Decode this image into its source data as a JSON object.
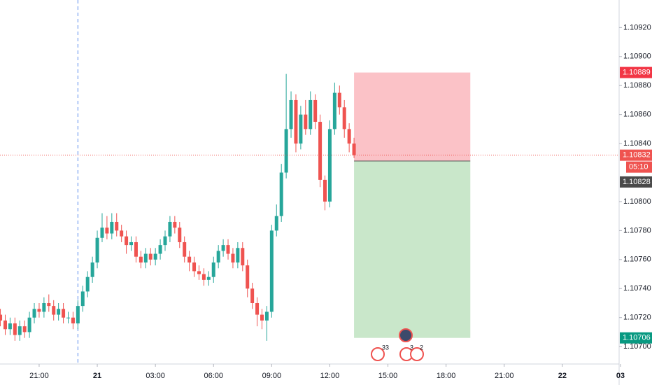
{
  "chart_data": {
    "type": "candlestick",
    "x": [
      19,
      19.25,
      19.5,
      19.75,
      20,
      20.25,
      20.5,
      20.75,
      21,
      21.25,
      21.5,
      21.75,
      22,
      22.25,
      22.5,
      22.75,
      23,
      23.25,
      23.5,
      23.75,
      24,
      24.25,
      24.5,
      24.75,
      25,
      25.25,
      25.5,
      25.75,
      26,
      26.25,
      26.5,
      26.75,
      27,
      27.25,
      27.5,
      27.75,
      28,
      28.25,
      28.5,
      28.75,
      29,
      29.25,
      29.5,
      29.75,
      30,
      30.25,
      30.5,
      30.75,
      31,
      31.25,
      31.5,
      31.75,
      32,
      32.25,
      32.5,
      32.75,
      33,
      33.25,
      33.5,
      33.75,
      34,
      34.25,
      34.5,
      34.75,
      35,
      35.25,
      35.5,
      35.75,
      36,
      36.25,
      36.5,
      36.75,
      37,
      37.25
    ],
    "open": [
      1.10722,
      1.10718,
      1.10712,
      1.10716,
      1.10708,
      1.10714,
      1.1071,
      1.1072,
      1.10726,
      1.10724,
      1.1073,
      1.10728,
      1.10722,
      1.10726,
      1.1072,
      1.1072,
      1.10716,
      1.10728,
      1.10738,
      1.10748,
      1.10758,
      1.10775,
      1.10782,
      1.10778,
      1.10786,
      1.1078,
      1.10776,
      1.1077,
      1.10772,
      1.10762,
      1.10758,
      1.10764,
      1.1076,
      1.10764,
      1.1077,
      1.10776,
      1.10786,
      1.10782,
      1.10772,
      1.10762,
      1.10758,
      1.10752,
      1.1075,
      1.10746,
      1.10748,
      1.10758,
      1.10766,
      1.1077,
      1.10764,
      1.10758,
      1.10768,
      1.10756,
      1.1074,
      1.1073,
      1.10722,
      1.10718,
      1.10724,
      1.1078,
      1.1079,
      1.1082,
      1.1085,
      1.1087,
      1.1084,
      1.1086,
      1.1085,
      1.1087,
      1.10855,
      1.10815,
      1.108,
      1.1085,
      1.10875,
      1.10865,
      1.1085,
      1.1084
    ],
    "high": [
      1.10726,
      1.10722,
      1.1072,
      1.1072,
      1.10718,
      1.10718,
      1.10724,
      1.1073,
      1.1073,
      1.10734,
      1.10736,
      1.10732,
      1.1073,
      1.1073,
      1.10724,
      1.10724,
      1.10732,
      1.10742,
      1.10752,
      1.10762,
      1.1078,
      1.10792,
      1.1079,
      1.10792,
      1.10792,
      1.10784,
      1.1078,
      1.10776,
      1.10776,
      1.10766,
      1.10768,
      1.10768,
      1.10768,
      1.10774,
      1.1078,
      1.1079,
      1.1079,
      1.10786,
      1.10776,
      1.10766,
      1.10762,
      1.10756,
      1.10754,
      1.10752,
      1.10762,
      1.1077,
      1.10774,
      1.10774,
      1.10768,
      1.10772,
      1.10772,
      1.1076,
      1.10744,
      1.10734,
      1.10726,
      1.10728,
      1.10784,
      1.10798,
      1.10826,
      1.10888,
      1.10876,
      1.10874,
      1.10866,
      1.1087,
      1.10876,
      1.10874,
      1.1086,
      1.10818,
      1.10856,
      1.10882,
      1.1088,
      1.1087,
      1.10854,
      1.10844
    ],
    "low": [
      1.10714,
      1.10708,
      1.10708,
      1.10704,
      1.10704,
      1.10706,
      1.10706,
      1.10716,
      1.1072,
      1.1072,
      1.10724,
      1.10718,
      1.10718,
      1.10716,
      1.10716,
      1.10712,
      1.10712,
      1.10724,
      1.10734,
      1.10744,
      1.10754,
      1.10772,
      1.10774,
      1.10774,
      1.10776,
      1.10772,
      1.10764,
      1.10766,
      1.10758,
      1.10754,
      1.10754,
      1.10756,
      1.10756,
      1.1076,
      1.10766,
      1.10772,
      1.10778,
      1.10768,
      1.10758,
      1.10752,
      1.10748,
      1.10746,
      1.10742,
      1.10742,
      1.10744,
      1.10754,
      1.10762,
      1.1076,
      1.10754,
      1.10754,
      1.10752,
      1.10734,
      1.10726,
      1.10714,
      1.10712,
      1.10704,
      1.1072,
      1.10776,
      1.10786,
      1.10816,
      1.10844,
      1.10834,
      1.10836,
      1.10846,
      1.10846,
      1.1085,
      1.1081,
      1.10794,
      1.10796,
      1.10846,
      1.1086,
      1.10844,
      1.10834,
      1.1083
    ],
    "close": [
      1.10718,
      1.10712,
      1.10716,
      1.10708,
      1.10714,
      1.1071,
      1.1072,
      1.10726,
      1.10724,
      1.1073,
      1.10728,
      1.10722,
      1.10726,
      1.1072,
      1.1072,
      1.10716,
      1.10728,
      1.10738,
      1.10748,
      1.10758,
      1.10775,
      1.10782,
      1.10778,
      1.10786,
      1.1078,
      1.10776,
      1.1077,
      1.10772,
      1.10762,
      1.10758,
      1.10764,
      1.1076,
      1.10764,
      1.1077,
      1.10776,
      1.10786,
      1.10782,
      1.10772,
      1.10762,
      1.10758,
      1.10752,
      1.1075,
      1.10746,
      1.10748,
      1.10758,
      1.10766,
      1.1077,
      1.10764,
      1.10758,
      1.10768,
      1.10756,
      1.1074,
      1.1073,
      1.10722,
      1.10718,
      1.10724,
      1.1078,
      1.1079,
      1.1082,
      1.1085,
      1.1087,
      1.1084,
      1.1086,
      1.1085,
      1.1087,
      1.10855,
      1.10815,
      1.108,
      1.1085,
      1.10875,
      1.10865,
      1.1085,
      1.1084,
      1.10832
    ],
    "up_color": "#26a69a",
    "down_color": "#ef5350",
    "xlim": [
      18.98,
      50.93
    ],
    "xticks": [
      {
        "value": 21,
        "label": "21:00"
      },
      {
        "value": 24,
        "label": "21"
      },
      {
        "value": 27,
        "label": "03:00"
      },
      {
        "value": 30,
        "label": "06:00"
      },
      {
        "value": 33,
        "label": "09:00"
      },
      {
        "value": 36,
        "label": "12:00"
      },
      {
        "value": 39,
        "label": "15:00"
      },
      {
        "value": 42,
        "label": "18:00"
      },
      {
        "value": 45,
        "label": "21:00"
      },
      {
        "value": 48,
        "label": "22"
      },
      {
        "value": 51,
        "label": "03"
      }
    ],
    "ylim": [
      1.10688,
      1.10939
    ],
    "yticks": [
      {
        "value": 1.107,
        "label": "1.10700"
      },
      {
        "value": 1.1072,
        "label": "1.10720"
      },
      {
        "value": 1.1074,
        "label": "1.10740"
      },
      {
        "value": 1.1076,
        "label": "1.10760"
      },
      {
        "value": 1.1078,
        "label": "1.10780"
      },
      {
        "value": 1.108,
        "label": "1.10800"
      },
      {
        "value": 1.1084,
        "label": "1.10840"
      },
      {
        "value": 1.1086,
        "label": "1.10860"
      },
      {
        "value": 1.1088,
        "label": "1.10880"
      },
      {
        "value": 1.109,
        "label": "1.10900"
      },
      {
        "value": 1.1092,
        "label": "1.10920"
      }
    ],
    "session_break": 23,
    "last_price": 1.10832,
    "countdown": "05:10",
    "position": {
      "start": 37.25,
      "end": 43.25,
      "stop": 1.10889,
      "entry": 1.10828,
      "target": 1.10706
    },
    "events": [
      {
        "label": "33"
      },
      {
        "label": "3"
      },
      {
        "label": "2"
      }
    ]
  }
}
